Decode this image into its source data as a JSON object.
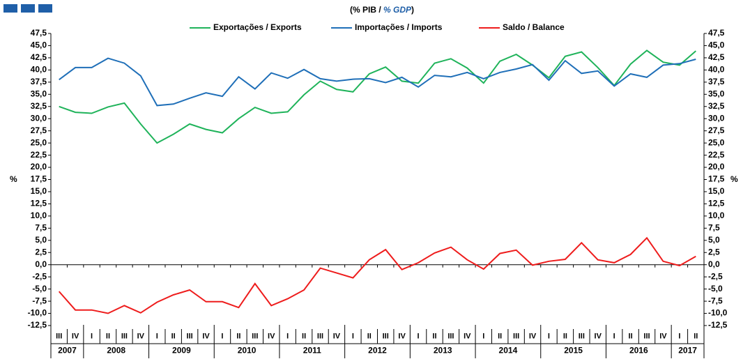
{
  "chart_data": {
    "type": "line",
    "title_parts": [
      "(% PIB / ",
      "% GDP",
      ")"
    ],
    "y_label": "%",
    "y2_label": "%",
    "categories": [
      "III",
      "IV",
      "I",
      "II",
      "III",
      "IV",
      "I",
      "II",
      "III",
      "IV",
      "I",
      "II",
      "III",
      "IV",
      "I",
      "II",
      "III",
      "IV",
      "I",
      "II",
      "III",
      "IV",
      "I",
      "II",
      "III",
      "IV",
      "I",
      "II",
      "III",
      "IV",
      "I",
      "II",
      "III",
      "IV",
      "I",
      "II",
      "III",
      "IV",
      "I",
      "II"
    ],
    "years": [
      "2007",
      "2008",
      "2009",
      "2010",
      "2011",
      "2012",
      "2013",
      "2014",
      "2015",
      "2016",
      "2017"
    ],
    "series": [
      {
        "name": "Exportações / Exports",
        "color": "#1fb35a",
        "values": [
          32.5,
          31.3,
          31.1,
          32.4,
          33.2,
          28.9,
          25.0,
          26.8,
          28.9,
          27.8,
          27.1,
          30.0,
          32.3,
          31.1,
          31.4,
          34.9,
          37.7,
          36.0,
          35.5,
          39.2,
          40.6,
          37.7,
          37.3,
          41.4,
          42.3,
          40.4,
          37.3,
          41.8,
          43.2,
          41.0,
          38.4,
          42.8,
          43.7,
          40.5,
          36.8,
          41.2,
          44.0,
          41.6,
          41.0,
          43.9
        ]
      },
      {
        "name": "Importações / Imports",
        "color": "#1f6fb8",
        "values": [
          38.0,
          40.5,
          40.5,
          42.4,
          41.4,
          38.8,
          32.7,
          33.0,
          34.2,
          35.3,
          34.6,
          38.6,
          36.1,
          39.4,
          38.3,
          40.1,
          38.2,
          37.7,
          38.1,
          38.2,
          37.4,
          38.5,
          36.5,
          38.9,
          38.6,
          39.5,
          38.2,
          39.5,
          40.2,
          41.1,
          37.9,
          41.9,
          39.3,
          39.8,
          36.7,
          39.2,
          38.5,
          41.0,
          41.3,
          42.2
        ]
      },
      {
        "name": "Saldo / Balance",
        "color": "#ee1c1c",
        "values": [
          -5.5,
          -9.3,
          -9.3,
          -10.0,
          -8.4,
          -9.9,
          -7.7,
          -6.2,
          -5.2,
          -7.6,
          -7.6,
          -8.8,
          -3.9,
          -8.4,
          -7.0,
          -5.2,
          -0.7,
          -1.7,
          -2.7,
          1.0,
          3.1,
          -1.0,
          0.4,
          2.4,
          3.6,
          1.0,
          -0.9,
          2.3,
          3.0,
          -0.1,
          0.7,
          1.1,
          4.5,
          1.0,
          0.4,
          2.1,
          5.5,
          0.7,
          -0.2,
          1.7
        ]
      }
    ],
    "ylim": [
      -12.5,
      47.5
    ],
    "yticks": [
      {
        "value": -12.5,
        "label": "-12,5"
      },
      {
        "value": -10,
        "label": "-10,0"
      },
      {
        "value": -7.5,
        "label": "-7,5"
      },
      {
        "value": -5,
        "label": "-5,0"
      },
      {
        "value": -2.5,
        "label": "-2,5"
      },
      {
        "value": 0,
        "label": "0,0"
      },
      {
        "value": 2.5,
        "label": "2,5"
      },
      {
        "value": 5,
        "label": "5,0"
      },
      {
        "value": 7.5,
        "label": "7,5"
      },
      {
        "value": 10,
        "label": "10,0"
      },
      {
        "value": 12.5,
        "label": "12,5"
      },
      {
        "value": 15,
        "label": "15,0"
      },
      {
        "value": 17.5,
        "label": "17,5"
      },
      {
        "value": 20,
        "label": "20,0"
      },
      {
        "value": 22.5,
        "label": "22,5"
      },
      {
        "value": 25,
        "label": "25,0"
      },
      {
        "value": 27.5,
        "label": "27,5"
      },
      {
        "value": 30,
        "label": "30,0"
      },
      {
        "value": 32.5,
        "label": "32,5"
      },
      {
        "value": 35,
        "label": "35,0"
      },
      {
        "value": 37.5,
        "label": "37,5"
      },
      {
        "value": 40,
        "label": "40,0"
      },
      {
        "value": 42.5,
        "label": "42,5"
      },
      {
        "value": 45,
        "label": "45,0"
      },
      {
        "value": 47.5,
        "label": "47,5"
      }
    ],
    "y2lim": [
      -12.5,
      47.5
    ],
    "y2ticks": [
      {
        "value": -12.5,
        "label": "-12,5"
      },
      {
        "value": -10,
        "label": "-10,0"
      },
      {
        "value": -7.5,
        "label": "-7,5"
      },
      {
        "value": -5,
        "label": "-5,0"
      },
      {
        "value": -2.5,
        "label": "-2,5"
      },
      {
        "value": 0,
        "label": "0,0"
      },
      {
        "value": 2.5,
        "label": "2,5"
      },
      {
        "value": 5,
        "label": "5,0"
      },
      {
        "value": 7.5,
        "label": "7,5"
      },
      {
        "value": 10,
        "label": "10,0"
      },
      {
        "value": 12.5,
        "label": "12,5"
      },
      {
        "value": 15,
        "label": "15,0"
      },
      {
        "value": 17.5,
        "label": "17,5"
      },
      {
        "value": 20,
        "label": "20,0"
      },
      {
        "value": 22.5,
        "label": "22,5"
      },
      {
        "value": 25,
        "label": "25,0"
      },
      {
        "value": 27.5,
        "label": "27,5"
      },
      {
        "value": 30,
        "label": "30,0"
      },
      {
        "value": 32.5,
        "label": "32,5"
      },
      {
        "value": 35,
        "label": "35,0"
      },
      {
        "value": 37.5,
        "label": "37,5"
      },
      {
        "value": 40,
        "label": "40,0"
      },
      {
        "value": 42.5,
        "label": "42,5"
      },
      {
        "value": 45,
        "label": "45,0"
      },
      {
        "value": 47.5,
        "label": "47,5"
      }
    ],
    "grid": false,
    "legend": "top"
  }
}
